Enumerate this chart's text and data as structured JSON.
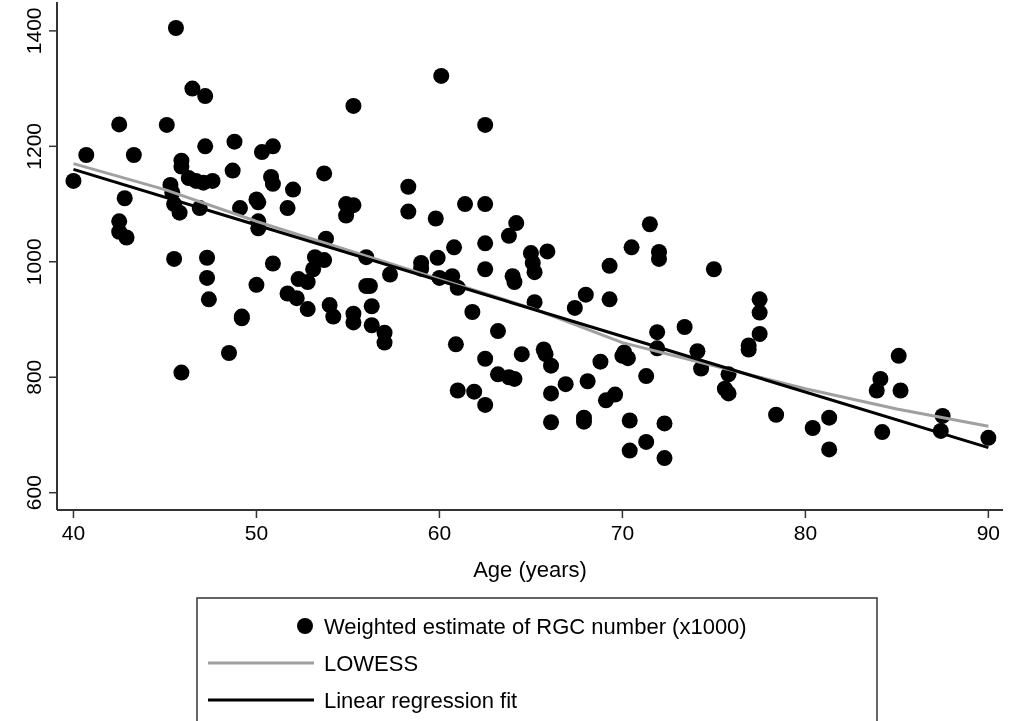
{
  "chart_data": {
    "type": "scatter",
    "xlabel": "Age (years)",
    "xlim": [
      39.1,
      90.8
    ],
    "xticks": [
      40,
      50,
      60,
      70,
      80,
      90
    ],
    "ylim": [
      570,
      1450
    ],
    "yticks": [
      600,
      800,
      1000,
      1200,
      1400
    ],
    "grid": false,
    "legend": "bottom",
    "series": [
      {
        "name": "Weighted estimate of RGC number (x1000)",
        "marker": "circle",
        "color": "#000000",
        "x": [
          40,
          40.7,
          42.5,
          42.5,
          42.5,
          42.8,
          42.9,
          43.3,
          45.1,
          45.3,
          45.4,
          45.5,
          45.5,
          45.6,
          45.8,
          45.9,
          45.9,
          45.9,
          46.3,
          46.5,
          46.7,
          46.9,
          47.1,
          47.2,
          47.2,
          47.3,
          47.3,
          47.4,
          47.6,
          48.5,
          48.8,
          48.7,
          49.1,
          49.2,
          49.2,
          50.0,
          50.0,
          50.1,
          50.1,
          50.1,
          50.3,
          50.8,
          50.9,
          50.9,
          50.9,
          51.7,
          51.7,
          52.0,
          52.2,
          52.3,
          52.8,
          52.8,
          53.1,
          53.2,
          53.7,
          53.7,
          53.8,
          54.0,
          54.2,
          54.9,
          54.9,
          55.3,
          55.3,
          55.3,
          55.3,
          56.0,
          56.0,
          56.2,
          56.3,
          56.3,
          57.0,
          57.0,
          57.3,
          58.3,
          58.3,
          59.0,
          59.0,
          59.8,
          59.9,
          60.0,
          60.1,
          60.7,
          60.8,
          60.9,
          61.0,
          61.0,
          61.4,
          61.8,
          61.9,
          62.5,
          62.5,
          62.5,
          62.5,
          62.5,
          62.5,
          63.2,
          63.2,
          63.8,
          63.8,
          64.0,
          64.1,
          64.2,
          64.1,
          64.5,
          65.0,
          65.1,
          65.2,
          65.2,
          65.7,
          65.8,
          65.9,
          66.1,
          66.1,
          66.1,
          66.9,
          67.4,
          67.9,
          67.9,
          68.0,
          68.1,
          68.8,
          69.1,
          69.3,
          69.3,
          69.6,
          70.0,
          70.1,
          70.3,
          70.4,
          70.4,
          70.5,
          71.3,
          71.3,
          71.5,
          71.9,
          71.9,
          72.0,
          72.0,
          72.3,
          72.3,
          73.4,
          74.1,
          74.3,
          75.0,
          75.6,
          75.8,
          75.8,
          76.9,
          76.9,
          77.5,
          77.5,
          77.5,
          78.4,
          80.4,
          81.3,
          81.3,
          83.9,
          84.1,
          84.2,
          85.1,
          85.2,
          87.5,
          87.4,
          90
        ],
        "values": [
          1140,
          1185,
          1238,
          1070,
          1052,
          1110,
          1042,
          1185,
          1237,
          1133,
          1120,
          1100,
          1005,
          1405,
          1085,
          1175,
          1165,
          808,
          1145,
          1300,
          1140,
          1093,
          1137,
          1287,
          1200,
          1007,
          972,
          935,
          1140,
          842,
          1208,
          1158,
          1093,
          905,
          902,
          960,
          1108,
          1103,
          1070,
          1058,
          1190,
          1147,
          1135,
          1200,
          997,
          1093,
          945,
          1125,
          937,
          970,
          965,
          918,
          987,
          1008,
          1003,
          1153,
          1040,
          925,
          905,
          1100,
          1080,
          1270,
          1098,
          910,
          895,
          1008,
          958,
          958,
          923,
          890,
          877,
          860,
          978,
          1130,
          1087,
          998,
          988,
          1075,
          1007,
          972,
          1322,
          975,
          1025,
          857,
          777,
          955,
          1100,
          913,
          775,
          1237,
          1100,
          1032,
          987,
          832,
          752,
          880,
          805,
          1045,
          800,
          975,
          965,
          1067,
          797,
          840,
          1015,
          998,
          982,
          930,
          848,
          840,
          1018,
          820,
          772,
          722,
          788,
          920,
          730,
          723,
          943,
          793,
          827,
          760,
          993,
          935,
          770,
          837,
          843,
          833,
          725,
          673,
          1025,
          688,
          802,
          1065,
          878,
          850,
          1017,
          1005,
          720,
          660,
          887,
          845,
          815,
          987,
          780,
          772,
          805,
          848,
          855,
          935,
          912,
          875,
          735,
          712,
          730,
          675,
          777,
          797,
          705,
          837,
          777,
          733,
          707,
          695
        ]
      },
      {
        "name": "LOWESS",
        "type": "line",
        "color": "#a0a0a0",
        "x": [
          40,
          45,
          50,
          55,
          60,
          65,
          70,
          75,
          80,
          85,
          90
        ],
        "values": [
          1170,
          1125,
          1070,
          1020,
          970,
          920,
          860,
          820,
          780,
          745,
          715
        ]
      },
      {
        "name": "Linear regression fit",
        "type": "line",
        "color": "#000000",
        "x": [
          40,
          90
        ],
        "values": [
          1160,
          678
        ]
      }
    ]
  }
}
